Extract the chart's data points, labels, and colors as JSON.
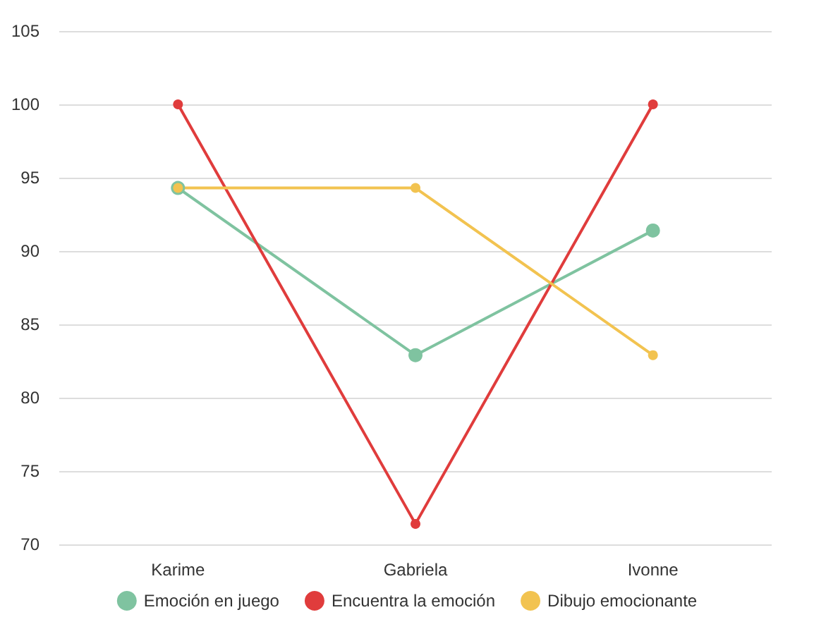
{
  "chart_data": {
    "type": "line",
    "categories": [
      "Karime",
      "Gabriela",
      "Ivonne"
    ],
    "series": [
      {
        "name": "Emoción en juego",
        "color": "#7fc3a0",
        "values": [
          94.3,
          82.9,
          91.4
        ]
      },
      {
        "name": "Encuentra la emoción",
        "color": "#e03c3c",
        "values": [
          100,
          71.4,
          100
        ]
      },
      {
        "name": "Dibujo emocionante",
        "color": "#f2c350",
        "values": [
          94.3,
          94.3,
          82.9
        ]
      }
    ],
    "ylim": [
      70,
      105
    ],
    "yticks": [
      70,
      75,
      80,
      85,
      90,
      95,
      100,
      105
    ],
    "grid": "y",
    "legend": "bottom",
    "marker": "circle",
    "line_style": "solid"
  }
}
